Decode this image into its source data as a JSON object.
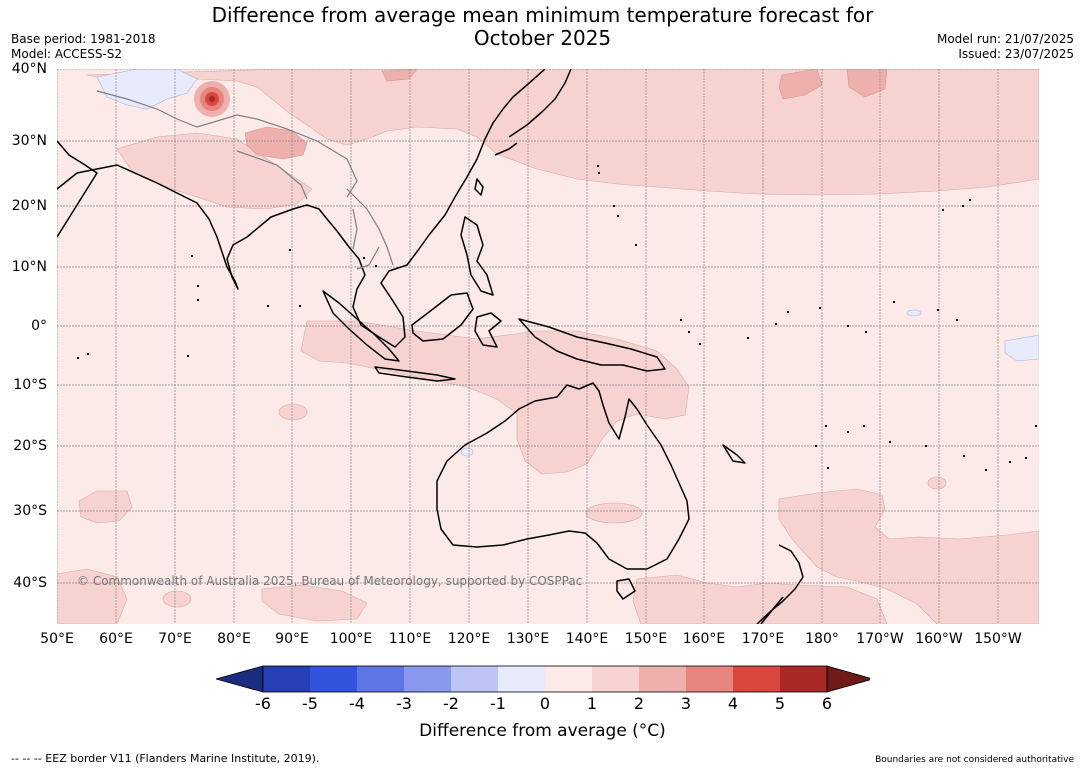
{
  "title_line1": "Difference from average mean minimum temperature forecast for",
  "title_line2": "October 2025",
  "base_period": "Base period: 1981-2018",
  "model": "Model: ACCESS-S2",
  "model_run": "Model run: 21/07/2025",
  "issued": "Issued: 23/07/2025",
  "copyright": "© Commonwealth of Australia 2025, Bureau of Meteorology, supported by COSPPac",
  "eez_note": "--  --  -- EEZ border V11 (Flanders Marine Institute, 2019).",
  "boundaries_note": "Boundaries are not considered authoritative",
  "lat_labels": [
    "40°N",
    "30°N",
    "20°N",
    "10°N",
    "0°",
    "10°S",
    "20°S",
    "30°S",
    "40°S"
  ],
  "lon_labels": [
    "50°E",
    "60°E",
    "70°E",
    "80°E",
    "90°E",
    "100°E",
    "110°E",
    "120°E",
    "130°E",
    "140°E",
    "150°E",
    "160°E",
    "170°E",
    "180°",
    "170°W",
    "160°W",
    "150°W"
  ],
  "colorbar": {
    "label": "Difference from average (°C)",
    "ticks": [
      "-6",
      "-5",
      "-4",
      "-3",
      "-2",
      "-1",
      "0",
      "1",
      "2",
      "3",
      "4",
      "5",
      "6"
    ],
    "colors": [
      "#1b2d7e",
      "#2540b4",
      "#3353df",
      "#5e75e6",
      "#8898ec",
      "#bcc5f4",
      "#e8ebfb",
      "#fbeae8",
      "#f6d3d0",
      "#eeb0ac",
      "#e6847e",
      "#d9473f",
      "#a92a25",
      "#6e1a18"
    ]
  }
}
